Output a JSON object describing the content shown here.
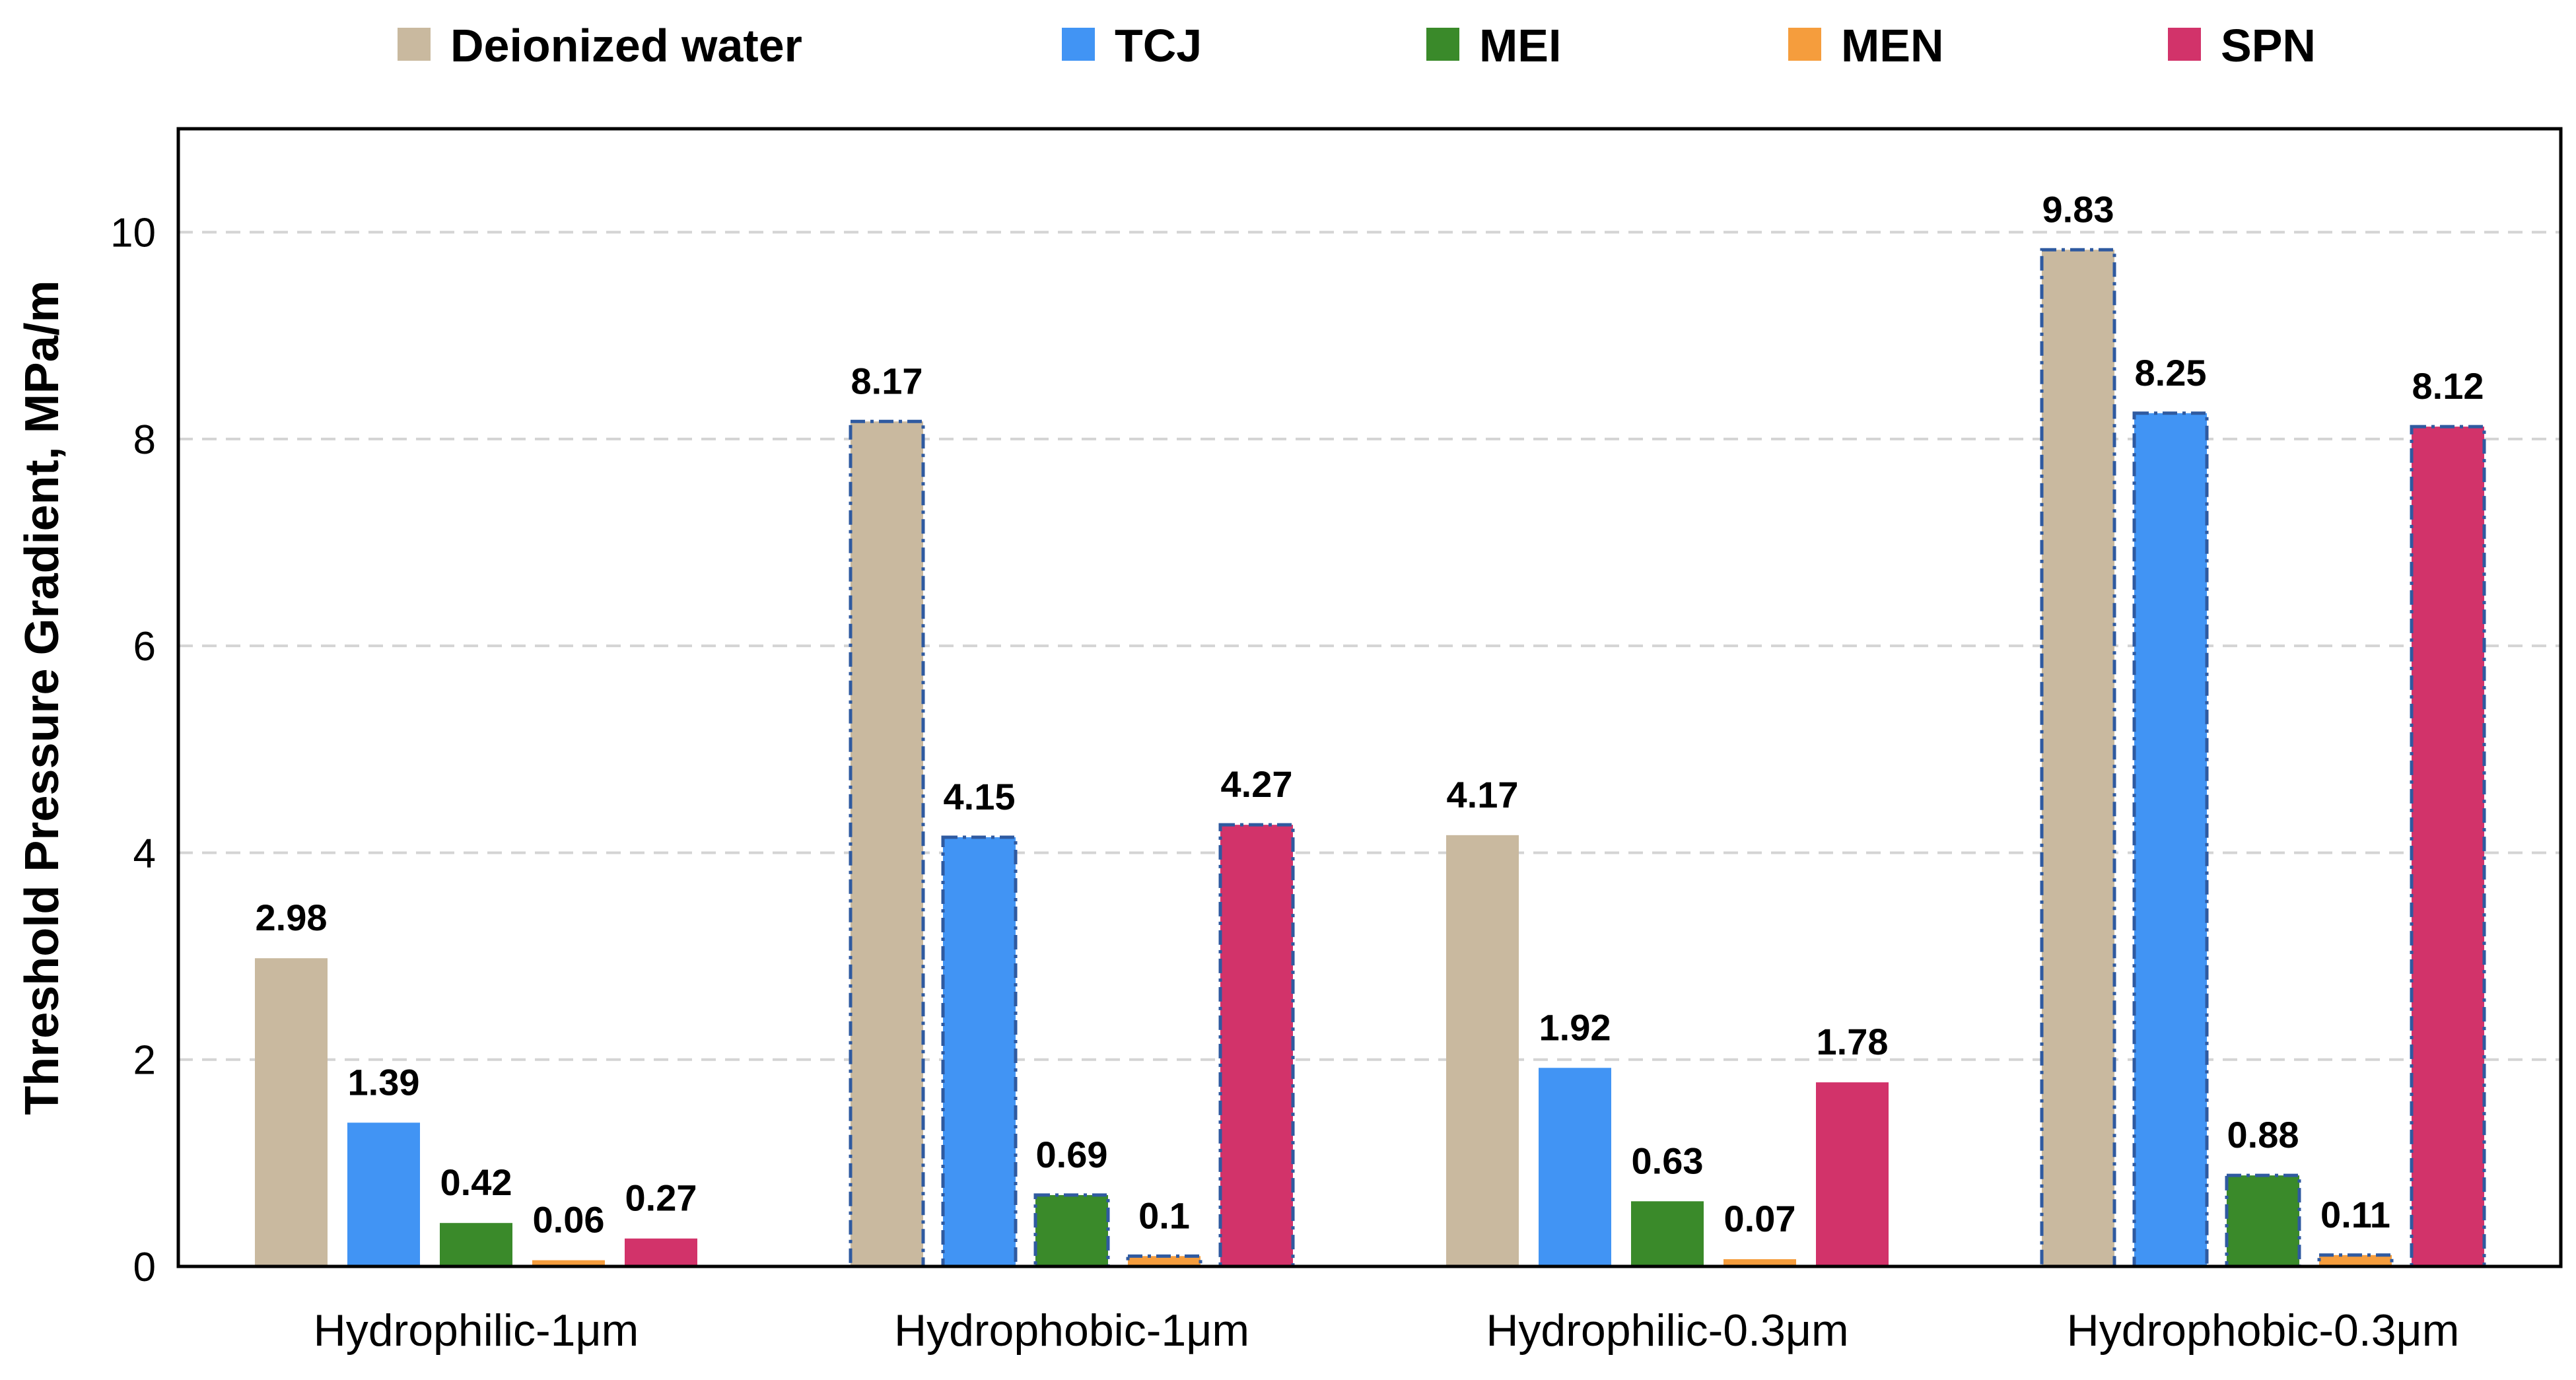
{
  "chart_data": {
    "type": "bar",
    "title": "",
    "xlabel": "",
    "ylabel": "Threshold Pressure Gradient, MPa/m",
    "ylim": [
      0,
      11
    ],
    "yticks": [
      "0",
      "2",
      "4",
      "6",
      "8",
      "10"
    ],
    "ytick_values": [
      0,
      2,
      4,
      6,
      8,
      10
    ],
    "grid": "horizontal dashed",
    "legend_position": "top",
    "categories": [
      "Hydrophilic-1μm",
      "Hydrophobic-1μm",
      "Hydrophilic-0.3μm",
      "Hydrophobic-0.3μm"
    ],
    "series": [
      {
        "name": "Deionized water",
        "color": "#c9b99f",
        "values": [
          2.98,
          8.17,
          4.17,
          9.83
        ],
        "labels": [
          "2.98",
          "8.17",
          "4.17",
          "9.83"
        ]
      },
      {
        "name": "TCJ",
        "color": "#4194f4",
        "values": [
          1.39,
          4.15,
          1.92,
          8.25
        ],
        "labels": [
          "1.39",
          "4.15",
          "1.92",
          "8.25"
        ]
      },
      {
        "name": "MEI",
        "color": "#3a8a2a",
        "values": [
          0.42,
          0.69,
          0.63,
          0.88
        ],
        "labels": [
          "0.42",
          "0.69",
          "0.63",
          "0.88"
        ]
      },
      {
        "name": "MEN",
        "color": "#f59d3d",
        "values": [
          0.06,
          0.1,
          0.07,
          0.11
        ],
        "labels": [
          "0.06",
          "0.1",
          "0.07",
          "0.11"
        ]
      },
      {
        "name": "SPN",
        "color": "#d2336a",
        "values": [
          0.27,
          4.27,
          1.78,
          8.12
        ],
        "labels": [
          "0.27",
          "4.27",
          "1.78",
          "8.12"
        ]
      }
    ],
    "dashed_outline_groups": [
      1,
      3
    ],
    "outline_color": "#2f5aa0"
  }
}
